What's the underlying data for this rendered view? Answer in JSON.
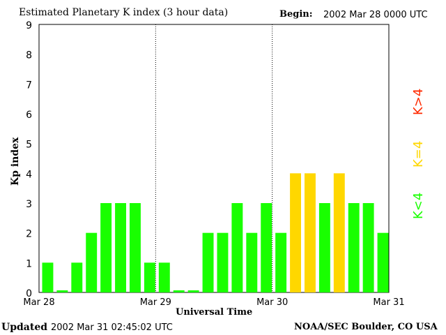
{
  "chart_data": {
    "type": "bar",
    "title": "Estimated Planetary K index (3 hour data)",
    "begin_label": "Begin:",
    "begin_value": "2002 Mar 28 0000 UTC",
    "xlabel": "Universal Time",
    "ylabel": "Kp index",
    "ylim": [
      0,
      9
    ],
    "yticks": [
      "0",
      "1",
      "2",
      "3",
      "4",
      "5",
      "6",
      "7",
      "8",
      "9"
    ],
    "xticks": [
      "Mar 28",
      "Mar 29",
      "Mar 30",
      "Mar 31"
    ],
    "values": [
      1,
      0,
      1,
      2,
      3,
      3,
      3,
      1,
      1,
      0,
      0,
      2,
      2,
      3,
      2,
      3,
      2,
      4,
      4,
      3,
      4,
      3,
      3,
      2
    ],
    "colors": {
      "below4": "#19ff00",
      "equal4": "#ffd700",
      "above4": "#ff2a00"
    },
    "legend": [
      {
        "label": "K<4",
        "color": "#19ff00"
      },
      {
        "label": "K=4",
        "color": "#ffd700"
      },
      {
        "label": "K>4",
        "color": "#ff2a00"
      }
    ],
    "legend_placement": "right",
    "grid": "day dividers (dotted)"
  },
  "footer": {
    "updated_label": "Updated",
    "updated_value": "2002 Mar 31 02:45:02 UTC",
    "source": "NOAA/SEC Boulder, CO USA"
  }
}
